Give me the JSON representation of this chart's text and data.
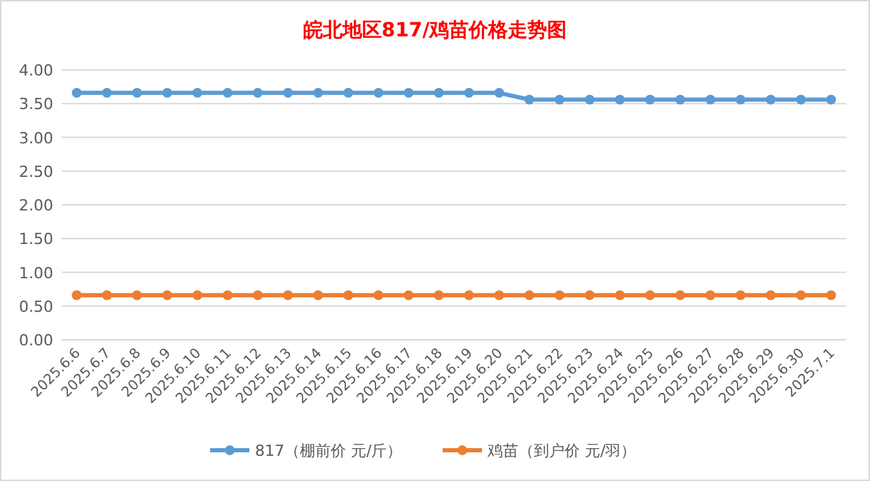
{
  "chart_data": {
    "type": "line",
    "title": "皖北地区817/鸡苗价格走势图",
    "categories": [
      "2025.6.6",
      "2025.6.7",
      "2025.6.8",
      "2025.6.9",
      "2025.6.10",
      "2025.6.11",
      "2025.6.12",
      "2025.6.13",
      "2025.6.14",
      "2025.6.15",
      "2025.6.16",
      "2025.6.17",
      "2025.6.18",
      "2025.6.19",
      "2025.6.20",
      "2025.6.21",
      "2025.6.22",
      "2025.6.23",
      "2025.6.24",
      "2025.6.25",
      "2025.6.26",
      "2025.6.27",
      "2025.6.28",
      "2025.6.29",
      "2025.6.30",
      "2025.7.1"
    ],
    "series": [
      {
        "name": "817（棚前价 元/斤）",
        "color": "#5b9bd5",
        "values": [
          3.66,
          3.66,
          3.66,
          3.66,
          3.66,
          3.66,
          3.66,
          3.66,
          3.66,
          3.66,
          3.66,
          3.66,
          3.66,
          3.66,
          3.66,
          3.56,
          3.56,
          3.56,
          3.56,
          3.56,
          3.56,
          3.56,
          3.56,
          3.56,
          3.56,
          3.56
        ]
      },
      {
        "name": "鸡苗（到户价 元/羽）",
        "color": "#ed7d31",
        "values": [
          0.66,
          0.66,
          0.66,
          0.66,
          0.66,
          0.66,
          0.66,
          0.66,
          0.66,
          0.66,
          0.66,
          0.66,
          0.66,
          0.66,
          0.66,
          0.66,
          0.66,
          0.66,
          0.66,
          0.66,
          0.66,
          0.66,
          0.66,
          0.66,
          0.66,
          0.66
        ]
      }
    ],
    "ylim": [
      0,
      4
    ],
    "yticks": [
      {
        "value": 0,
        "label": "0.00"
      },
      {
        "value": 0.5,
        "label": "0.50"
      },
      {
        "value": 1,
        "label": "1.00"
      },
      {
        "value": 1.5,
        "label": "1.50"
      },
      {
        "value": 2,
        "label": "2.00"
      },
      {
        "value": 2.5,
        "label": "2.50"
      },
      {
        "value": 3,
        "label": "3.00"
      },
      {
        "value": 3.5,
        "label": "3.50"
      },
      {
        "value": 4,
        "label": "4.00"
      }
    ],
    "grid": "y",
    "legend": "bottom",
    "marker": "circle",
    "line_style": "solid"
  }
}
